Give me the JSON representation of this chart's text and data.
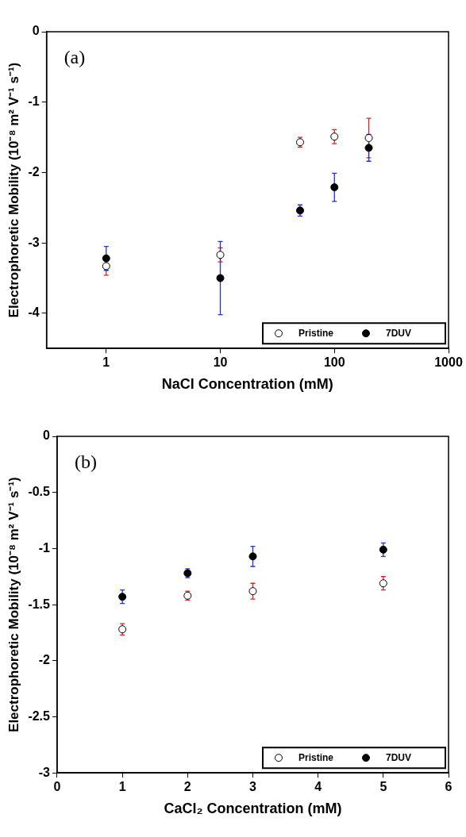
{
  "chart_data": [
    {
      "type": "scatter",
      "xlabel": "NaCl Concentration (mM)",
      "ylabel": "Electrophoretic Mobility (10⁻⁸ m² V⁻¹ s⁻¹)",
      "annotations": [
        "(a)"
      ],
      "log": "x",
      "xlim": [
        0.3,
        1000
      ],
      "xticks": [
        1,
        10,
        100,
        1000
      ],
      "ylim": [
        -4.5,
        0
      ],
      "yticks": [
        -4,
        -3,
        -2,
        -1,
        0
      ],
      "grid": false,
      "legend": "bottom right",
      "marker": "circle",
      "series": [
        {
          "name": "Pristine",
          "color": "#000000",
          "x": [
            1,
            10,
            50,
            100,
            200
          ],
          "values": [
            -3.33,
            -3.17,
            -1.57,
            -1.49,
            -1.51
          ],
          "errors": [
            0.13,
            0.1,
            0.07,
            0.1,
            0.28
          ]
        },
        {
          "name": "7DUV",
          "color": "#000000",
          "x": [
            1,
            10,
            50,
            100,
            200
          ],
          "values": [
            -3.22,
            -3.5,
            -2.54,
            -2.21,
            -1.65
          ],
          "errors": [
            0.17,
            0.52,
            0.08,
            0.2,
            0.19
          ]
        }
      ]
    },
    {
      "type": "scatter",
      "xlabel": "CaCl₂ Concentration (mM)",
      "ylabel": "Electrophoretic Mobility (10⁻⁸ m² V⁻¹ s⁻¹)",
      "annotations": [
        "(b)"
      ],
      "xlim": [
        0,
        6
      ],
      "xticks": [
        0,
        1,
        2,
        3,
        4,
        5,
        6
      ],
      "ylim": [
        -3,
        0
      ],
      "yticks": [
        -3,
        -2.5,
        -2,
        -1.5,
        -1,
        -0.5,
        0
      ],
      "grid": false,
      "legend": "bottom right",
      "marker": "circle",
      "series": [
        {
          "name": "Pristine",
          "color": "#000000",
          "x": [
            1,
            2,
            3,
            5
          ],
          "values": [
            -1.72,
            -1.42,
            -1.38,
            -1.31
          ],
          "errors": [
            0.05,
            0.04,
            0.07,
            0.06
          ]
        },
        {
          "name": "7DUV",
          "color": "#000000",
          "x": [
            1,
            2,
            3,
            5
          ],
          "values": [
            -1.43,
            -1.22,
            -1.07,
            -1.01
          ],
          "errors": [
            0.06,
            0.04,
            0.09,
            0.06
          ]
        }
      ]
    }
  ]
}
